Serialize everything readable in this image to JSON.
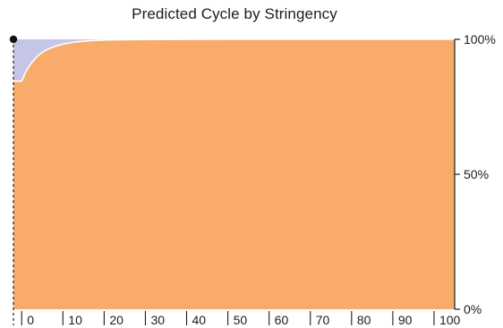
{
  "chart_data": {
    "type": "area",
    "title": "Predicted Cycle by Stringency",
    "xlabel": "",
    "ylabel": "",
    "x_ticks": [
      "0",
      "10",
      "20",
      "30",
      "40",
      "50",
      "60",
      "70",
      "80",
      "90",
      "100"
    ],
    "y_ticks": [
      "0%",
      "50%",
      "100%"
    ],
    "xlim": [
      -2,
      105
    ],
    "ylim": [
      0,
      100
    ],
    "stacked": true,
    "normalized_to": 100,
    "series": [
      {
        "color": "#f8ab6b",
        "x": [
          0,
          1,
          2,
          3,
          4,
          5,
          6,
          8,
          10,
          12,
          14,
          16,
          18,
          20,
          22,
          25,
          30,
          40,
          50,
          60,
          70,
          80,
          90,
          100,
          105
        ],
        "values": [
          84.5,
          88,
          90.5,
          92.4,
          94,
          95.2,
          96.1,
          97.4,
          98.2,
          98.8,
          99.2,
          99.45,
          99.6,
          99.72,
          99.8,
          99.87,
          99.94,
          99.98,
          100,
          100,
          100,
          100,
          100,
          100,
          100
        ]
      },
      {
        "color": "#c5c5e8",
        "x": [
          0,
          1,
          2,
          3,
          4,
          5,
          6,
          8,
          10,
          12,
          14,
          16,
          18,
          20,
          22,
          25,
          30,
          40,
          50,
          60,
          70,
          80,
          90,
          100,
          105
        ],
        "values": [
          15.5,
          12,
          9.5,
          7.6,
          6,
          4.8,
          3.9,
          2.6,
          1.8,
          1.2,
          0.8,
          0.55,
          0.4,
          0.28,
          0.2,
          0.13,
          0.06,
          0.02,
          0,
          0,
          0,
          0,
          0,
          0,
          0
        ]
      }
    ],
    "marker": {
      "x": 0,
      "y": 100,
      "color": "#111111"
    },
    "grid": false,
    "legend": "none"
  }
}
